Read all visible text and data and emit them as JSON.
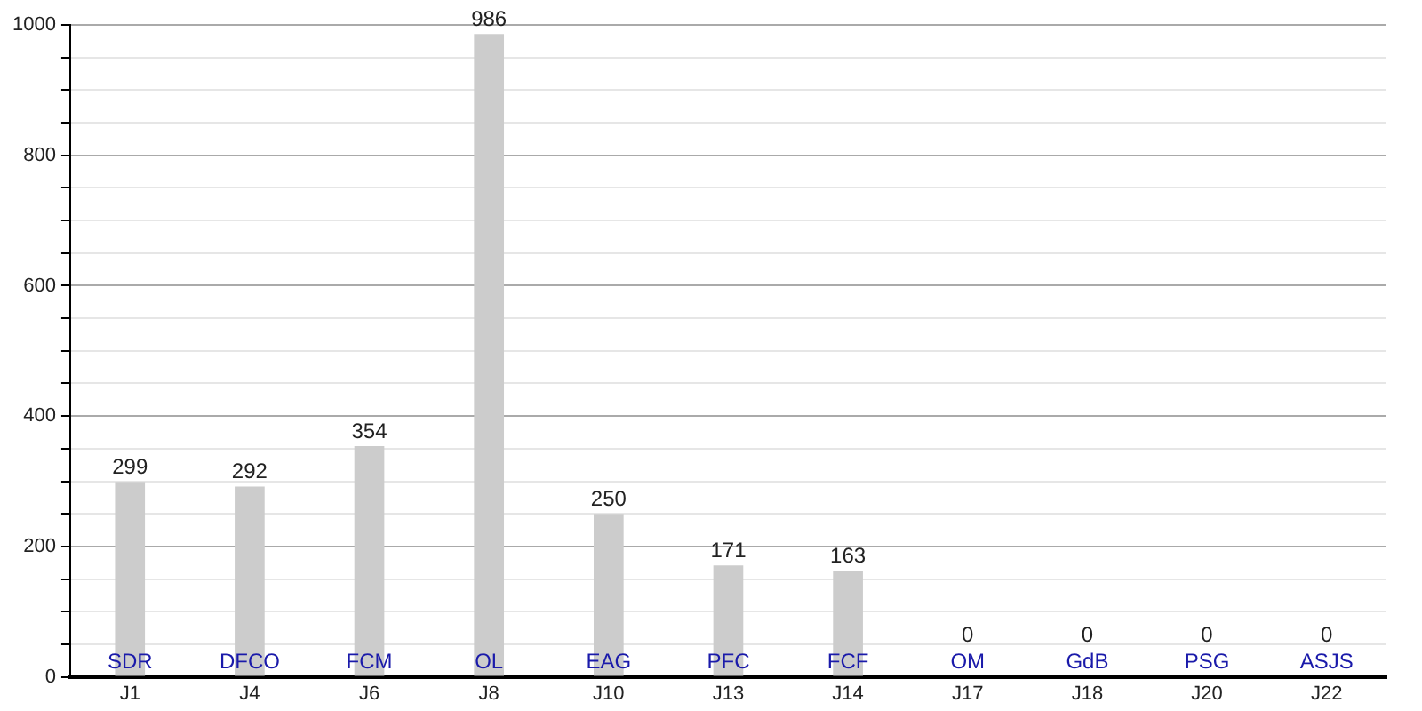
{
  "chart_data": {
    "type": "bar",
    "categories": [
      "J1",
      "J4",
      "J6",
      "J8",
      "J10",
      "J13",
      "J14",
      "J17",
      "J18",
      "J20",
      "J22"
    ],
    "values": [
      299,
      292,
      354,
      986,
      250,
      171,
      163,
      0,
      0,
      0,
      0
    ],
    "color": "#cccccc",
    "ylim": [
      0,
      1000
    ],
    "yticks": [
      0,
      {
        "value": 50,
        "label": null
      },
      {
        "value": 100,
        "label": null
      },
      {
        "value": 150,
        "label": null
      },
      200,
      {
        "value": 250,
        "label": null
      },
      {
        "value": 300,
        "label": null
      },
      {
        "value": 350,
        "label": null
      },
      400,
      {
        "value": 450,
        "label": null
      },
      {
        "value": 500,
        "label": null
      },
      {
        "value": 550,
        "label": null
      },
      600,
      {
        "value": 650,
        "label": null
      },
      {
        "value": 700,
        "label": null
      },
      {
        "value": 750,
        "label": null
      },
      800,
      {
        "value": 850,
        "label": null
      },
      {
        "value": 900,
        "label": null
      },
      {
        "value": 950,
        "label": null
      },
      1000
    ],
    "grid": "y",
    "data_labels": true,
    "annotations": [
      {
        "text": "SDR",
        "x": "J1",
        "y": 0
      },
      {
        "text": "DFCO",
        "x": "J4",
        "y": 0
      },
      {
        "text": "FCM",
        "x": "J6",
        "y": 0
      },
      {
        "text": "OL",
        "x": "J8",
        "y": 0
      },
      {
        "text": "EAG",
        "x": "J10",
        "y": 0
      },
      {
        "text": "PFC",
        "x": "J13",
        "y": 0
      },
      {
        "text": "FCF",
        "x": "J14",
        "y": 0
      },
      {
        "text": "OM",
        "x": "J17",
        "y": 0
      },
      {
        "text": "GdB",
        "x": "J18",
        "y": 0
      },
      {
        "text": "PSG",
        "x": "J20",
        "y": 0
      },
      {
        "text": "ASJS",
        "x": "J22",
        "y": 0
      }
    ]
  }
}
